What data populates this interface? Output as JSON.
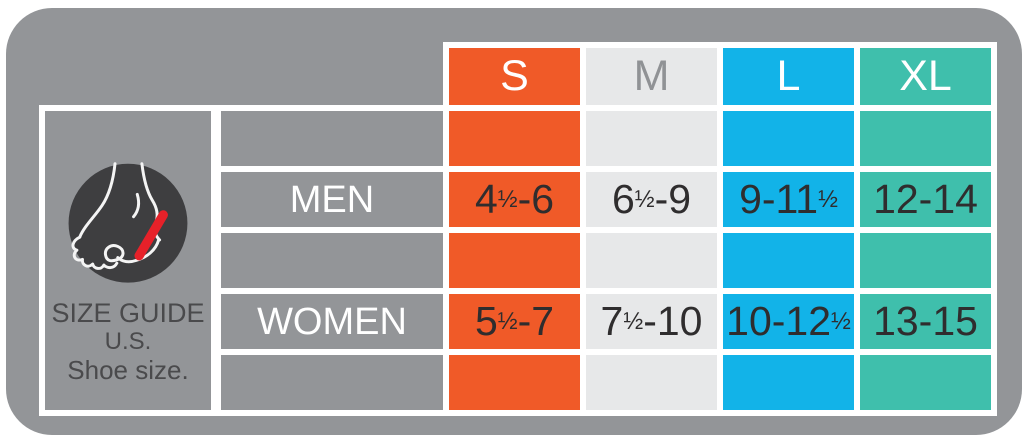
{
  "board": {
    "background": "#939598"
  },
  "legend": {
    "title": "SIZE GUIDE",
    "region": "U.S.",
    "caption": "Shoe size.",
    "icon": {
      "name": "foot-measure-icon",
      "circle_color": "#3E3E40",
      "line_color": "#F4F4F4",
      "slash_color": "#E62129"
    }
  },
  "table": {
    "value_text_color": "#2F2D2E",
    "columns": [
      {
        "label": "S",
        "color": "#F05A28",
        "text_color": "#FFFFFF"
      },
      {
        "label": "M",
        "color": "#E7E8E9",
        "text_color": "#909295"
      },
      {
        "label": "L",
        "color": "#12B3E8",
        "text_color": "#FFFFFF"
      },
      {
        "label": "XL",
        "color": "#3FBFAC",
        "text_color": "#FFFFFF"
      }
    ],
    "rows": [
      {
        "label": "MEN",
        "values": [
          "4½-6",
          "6½-9",
          "9-11½",
          "12-14"
        ]
      },
      {
        "label": "WOMEN",
        "values": [
          "5½-7",
          "7½-10",
          "10-12½",
          "13-15"
        ]
      }
    ]
  },
  "chart_data": {
    "type": "table",
    "title": "SIZE GUIDE U.S. Shoe size.",
    "columns": [
      "S",
      "M",
      "L",
      "XL"
    ],
    "rows": [
      {
        "label": "MEN",
        "values": [
          "4½-6",
          "6½-9",
          "9-11½",
          "12-14"
        ]
      },
      {
        "label": "WOMEN",
        "values": [
          "5½-7",
          "7½-10",
          "10-12½",
          "13-15"
        ]
      }
    ]
  }
}
